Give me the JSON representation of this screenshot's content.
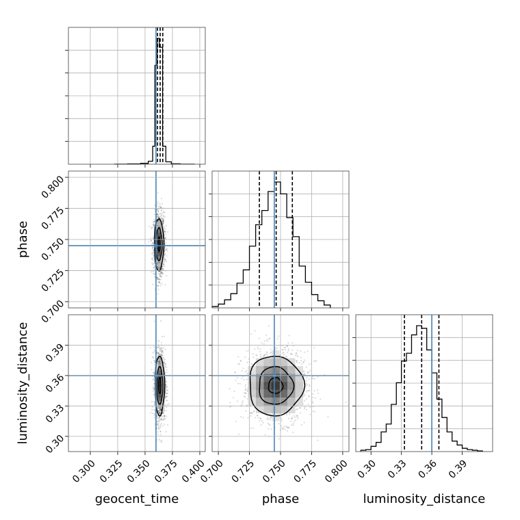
{
  "chart_data": {
    "type": "corner",
    "parameters": [
      "geocent_time",
      "phase",
      "luminosity_distance"
    ],
    "truths": {
      "geocent_time": 0.36,
      "phase": 0.745,
      "luminosity_distance": 0.36
    },
    "truth_color": "#4682b4",
    "grid": true,
    "ranges": {
      "geocent_time": [
        0.28,
        0.405
      ],
      "phase": [
        0.695,
        0.805
      ],
      "luminosity_distance": [
        0.285,
        0.42
      ]
    },
    "tick_labels": {
      "geocent_time": [
        "0.300",
        "0.325",
        "0.350",
        "0.375",
        "0.400"
      ],
      "phase": [
        "0.700",
        "0.725",
        "0.750",
        "0.775",
        "0.800"
      ],
      "luminosity_distance": [
        "0.30",
        "0.33",
        "0.36",
        "0.39"
      ]
    },
    "tick_values": {
      "geocent_time": [
        0.3,
        0.325,
        0.35,
        0.375,
        0.4
      ],
      "phase": [
        0.7,
        0.725,
        0.75,
        0.775,
        0.8
      ],
      "luminosity_distance": [
        0.3,
        0.33,
        0.36,
        0.39
      ]
    },
    "quantiles": {
      "geocent_time": [
        0.3614,
        0.3638,
        0.3662
      ],
      "phase": [
        0.733,
        0.7465,
        0.7595
      ],
      "luminosity_distance": [
        0.333,
        0.35,
        0.367
      ]
    },
    "histograms": {
      "geocent_time": {
        "edges": [
          0.322,
          0.334,
          0.346,
          0.353,
          0.357,
          0.359,
          0.361,
          0.363,
          0.366,
          0.369,
          0.374,
          0.382,
          0.395
        ],
        "counts": [
          0.3,
          1,
          3,
          10,
          60,
          330,
          420,
          390,
          60,
          8,
          1.5,
          0.3
        ]
      },
      "phase": {
        "edges": [
          0.695,
          0.7,
          0.705,
          0.71,
          0.715,
          0.72,
          0.725,
          0.73,
          0.735,
          0.74,
          0.745,
          0.75,
          0.755,
          0.76,
          0.765,
          0.77,
          0.775,
          0.78,
          0.785,
          0.79
        ],
        "counts": [
          3,
          8,
          17,
          30,
          52,
          80,
          130,
          175,
          205,
          245,
          265,
          240,
          190,
          150,
          88,
          54,
          28,
          15,
          6
        ]
      },
      "luminosity_distance": {
        "edges": [
          0.29,
          0.295,
          0.3,
          0.305,
          0.31,
          0.315,
          0.32,
          0.325,
          0.33,
          0.335,
          0.34,
          0.345,
          0.35,
          0.355,
          0.36,
          0.365,
          0.37,
          0.375,
          0.38,
          0.385,
          0.39,
          0.395,
          0.4,
          0.405,
          0.41
        ],
        "counts": [
          2,
          3,
          8,
          14,
          30,
          42,
          72,
          105,
          138,
          150,
          178,
          192,
          188,
          155,
          120,
          80,
          52,
          30,
          16,
          10,
          5,
          3,
          2,
          1
        ]
      }
    },
    "contours_2d": [
      {
        "x": "geocent_time",
        "y": "phase",
        "center": [
          0.3628,
          0.746
        ],
        "sigma": [
          0.0022,
          0.011
        ],
        "levels": [
          0.5,
          1.2,
          1.9
        ]
      },
      {
        "x": "geocent_time",
        "y": "luminosity_distance",
        "center": [
          0.3635,
          0.35
        ],
        "sigma": [
          0.0022,
          0.0155
        ],
        "levels": [
          0.5,
          1.2,
          1.9
        ]
      },
      {
        "x": "phase",
        "y": "luminosity_distance",
        "center": [
          0.746,
          0.35
        ],
        "sigma": [
          0.0115,
          0.0155
        ],
        "levels": [
          0.5,
          1.2,
          1.9
        ]
      }
    ]
  }
}
